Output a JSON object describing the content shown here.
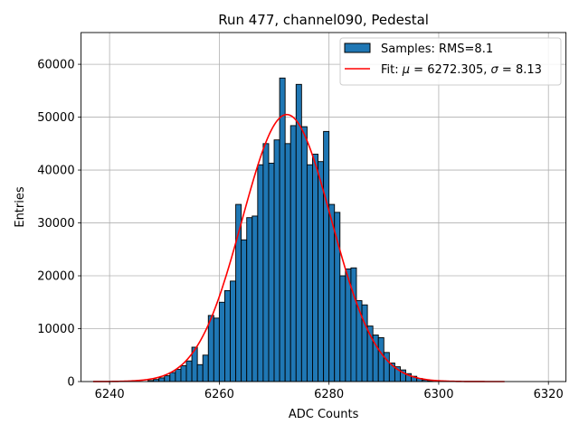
{
  "chart_data": {
    "type": "bar",
    "title": "Run 477, channel090, Pedestal",
    "xlabel": "ADC Counts",
    "ylabel": "Entries",
    "xlim": [
      6234.8,
      6323.2
    ],
    "ylim": [
      0,
      66000
    ],
    "grid": true,
    "legend_position": "top-right",
    "x_ticks": [
      6240,
      6260,
      6280,
      6300,
      6320
    ],
    "y_ticks": [
      0,
      10000,
      20000,
      30000,
      40000,
      50000,
      60000
    ],
    "bin_width": 1,
    "series": [
      {
        "name": "Samples: RMS=8.1",
        "kind": "histogram",
        "color": "#1f77b4",
        "edgecolor": "#000000",
        "bin_starts": [
          6247,
          6248,
          6249,
          6250,
          6251,
          6252,
          6253,
          6254,
          6255,
          6256,
          6257,
          6258,
          6259,
          6260,
          6261,
          6262,
          6263,
          6264,
          6265,
          6266,
          6267,
          6268,
          6269,
          6270,
          6271,
          6272,
          6273,
          6274,
          6275,
          6276,
          6277,
          6278,
          6279,
          6280,
          6281,
          6282,
          6283,
          6284,
          6285,
          6286,
          6287,
          6288,
          6289,
          6290,
          6291,
          6292,
          6293,
          6294,
          6295,
          6296,
          6297,
          6298
        ],
        "counts": [
          200,
          400,
          700,
          1100,
          1700,
          2300,
          3000,
          3900,
          6500,
          3200,
          5000,
          12500,
          12000,
          15000,
          17200,
          19000,
          33500,
          26800,
          31000,
          31300,
          41000,
          45000,
          41300,
          45700,
          57400,
          45000,
          48400,
          56200,
          48200,
          41000,
          43000,
          41600,
          47300,
          33500,
          32000,
          20000,
          21300,
          21500,
          15300,
          14500,
          10500,
          8800,
          8300,
          5500,
          3500,
          2800,
          2200,
          1500,
          1000,
          600,
          300,
          150
        ]
      },
      {
        "name": "Fit: μ = 6272.305, σ = 8.13",
        "name_prefix": "Fit: ",
        "mu_value": "6272.305",
        "sigma_value": "8.13",
        "kind": "gaussian_fit",
        "color": "#ff0000",
        "mu": 6272.305,
        "sigma": 8.13,
        "amplitude": 50500,
        "x_range": [
          6237,
          6312
        ]
      }
    ]
  }
}
